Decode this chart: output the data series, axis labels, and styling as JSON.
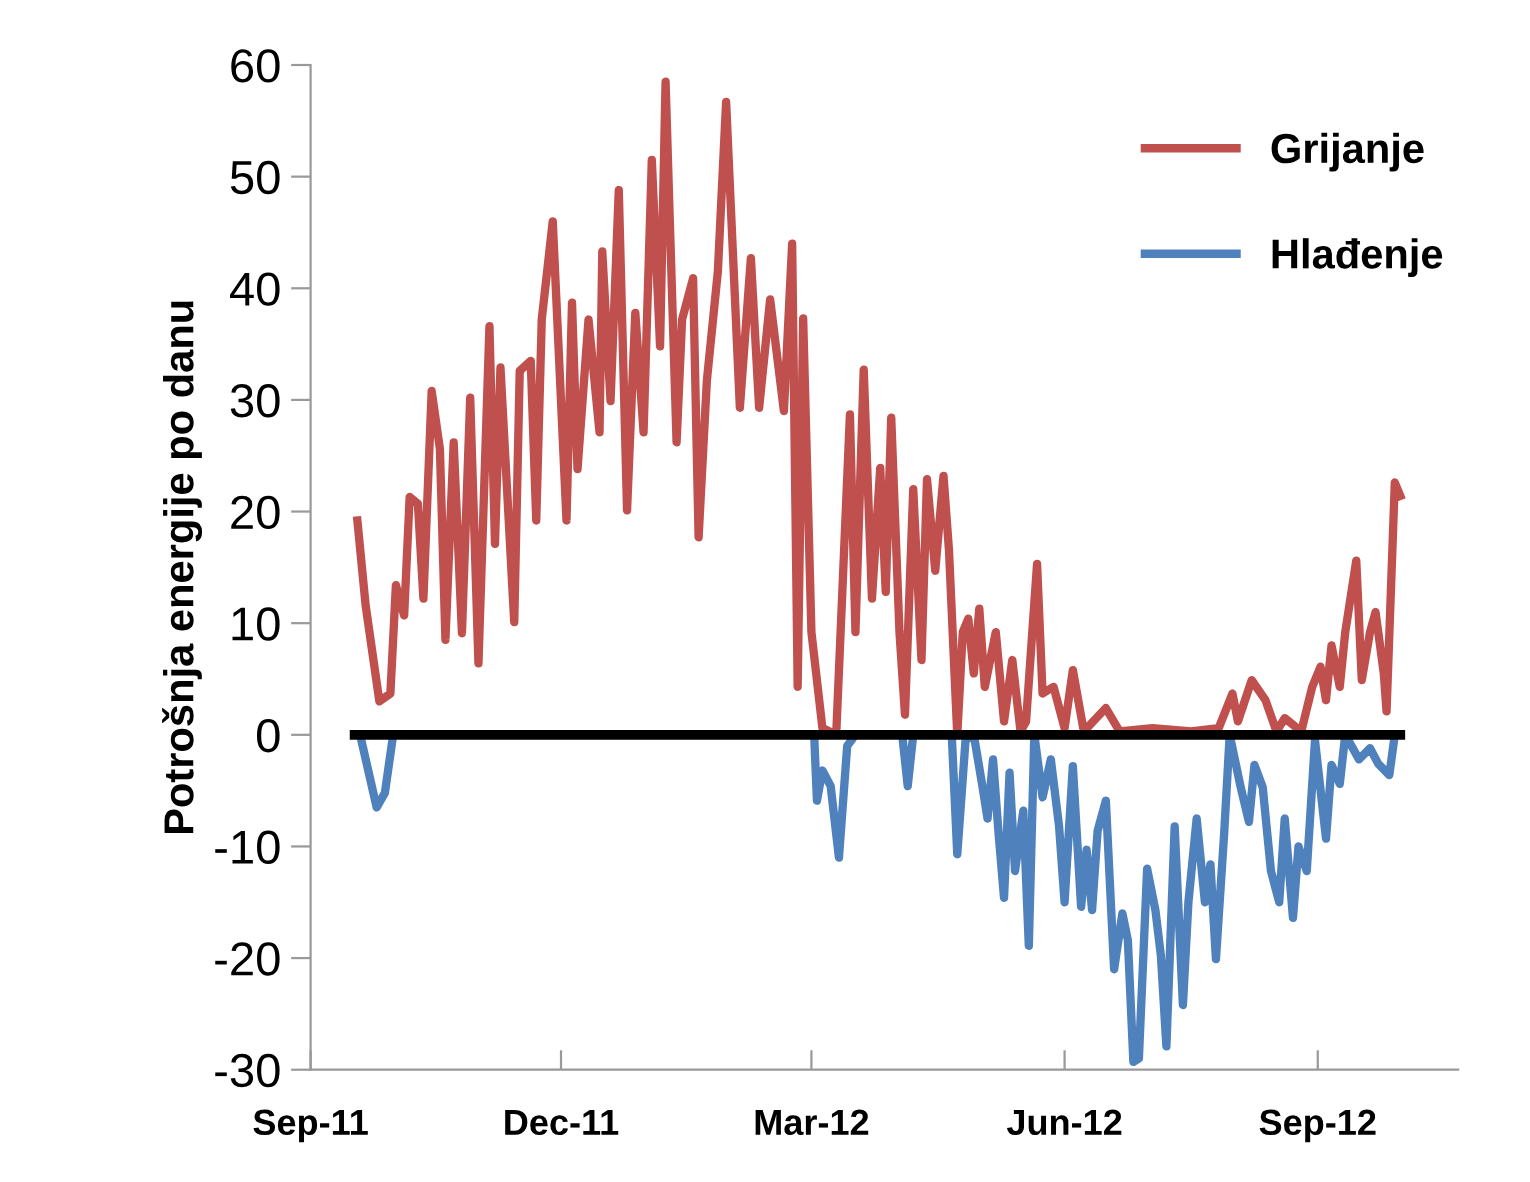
{
  "chart_data": {
    "type": "line",
    "ylabel": "Potrošnja energije po danu",
    "xlim": [
      "2011-09-01",
      "2012-10-22"
    ],
    "ylim": [
      -30,
      60
    ],
    "xticks": [
      {
        "value": "2011-09-01",
        "label": "Sep-11"
      },
      {
        "value": "2011-12-01",
        "label": "Dec-11"
      },
      {
        "value": "2012-03-01",
        "label": "Mar-12"
      },
      {
        "value": "2012-06-01",
        "label": "Jun-12"
      },
      {
        "value": "2012-09-01",
        "label": "Sep-12"
      }
    ],
    "yticks": [
      -30,
      -20,
      -10,
      0,
      10,
      20,
      30,
      40,
      50,
      60
    ],
    "grid": false,
    "legend": "top right",
    "marker": "none",
    "line_style": "solid",
    "series": [
      {
        "name": "Grijanje",
        "color": "#c0504d",
        "x": [
          "2011-09-18",
          "2011-09-21",
          "2011-09-26",
          "2011-09-30",
          "2011-10-02",
          "2011-10-05",
          "2011-10-07",
          "2011-10-10",
          "2011-10-12",
          "2011-10-15",
          "2011-10-18",
          "2011-10-20",
          "2011-10-23",
          "2011-10-26",
          "2011-10-29",
          "2011-11-01",
          "2011-11-05",
          "2011-11-07",
          "2011-11-09",
          "2011-11-14",
          "2011-11-16",
          "2011-11-20",
          "2011-11-22",
          "2011-11-24",
          "2011-11-28",
          "2011-12-03",
          "2011-12-05",
          "2011-12-07",
          "2011-12-11",
          "2011-12-15",
          "2011-12-16",
          "2011-12-19",
          "2011-12-22",
          "2011-12-25",
          "2011-12-28",
          "2011-12-31",
          "2012-01-03",
          "2012-01-06",
          "2012-01-08",
          "2012-01-12",
          "2012-01-14",
          "2012-01-18",
          "2012-01-20",
          "2012-01-23",
          "2012-01-27",
          "2012-01-30",
          "2012-02-04",
          "2012-02-08",
          "2012-02-11",
          "2012-02-15",
          "2012-02-20",
          "2012-02-23",
          "2012-02-25",
          "2012-02-27",
          "2012-03-01",
          "2012-03-05",
          "2012-03-10",
          "2012-03-15",
          "2012-03-17",
          "2012-03-20",
          "2012-03-23",
          "2012-03-26",
          "2012-03-28",
          "2012-03-30",
          "2012-04-02",
          "2012-04-04",
          "2012-04-07",
          "2012-04-10",
          "2012-04-12",
          "2012-04-15",
          "2012-04-18",
          "2012-04-20",
          "2012-04-23",
          "2012-04-25",
          "2012-04-27",
          "2012-04-29",
          "2012-05-01",
          "2012-05-03",
          "2012-05-07",
          "2012-05-10",
          "2012-05-13",
          "2012-05-16",
          "2012-05-18",
          "2012-05-22",
          "2012-05-24",
          "2012-05-28",
          "2012-06-01",
          "2012-06-04",
          "2012-06-08",
          "2012-06-16",
          "2012-06-21",
          "2012-07-03",
          "2012-07-17",
          "2012-07-27",
          "2012-08-01",
          "2012-08-03",
          "2012-08-08",
          "2012-08-13",
          "2012-08-17",
          "2012-08-20",
          "2012-08-26",
          "2012-08-30",
          "2012-09-02",
          "2012-09-04",
          "2012-09-06",
          "2012-09-09",
          "2012-09-11",
          "2012-09-15",
          "2012-09-17",
          "2012-09-20",
          "2012-09-22",
          "2012-09-25",
          "2012-09-26",
          "2012-09-29",
          "2012-10-01"
        ],
        "values": [
          19.2,
          11.6,
          3.0,
          3.7,
          13.4,
          10.7,
          21.3,
          20.7,
          12.2,
          30.8,
          25.6,
          8.5,
          26.2,
          9.1,
          30.2,
          6.4,
          36.6,
          17.1,
          32.9,
          10.1,
          32.6,
          33.5,
          19.2,
          37.2,
          46,
          19.2,
          38.7,
          23.8,
          37.2,
          27.1,
          43.3,
          29.9,
          48.8,
          20.1,
          37.8,
          27.1,
          51.5,
          34.8,
          58.5,
          26.2,
          37.2,
          40.9,
          17.7,
          31.7,
          41.5,
          56.7,
          29.3,
          42.7,
          29.3,
          39,
          29,
          44,
          4.3,
          37.3,
          9.2,
          0.6,
          0,
          28.7,
          9.2,
          32.7,
          12.2,
          23.9,
          12.8,
          28.4,
          9.2,
          1.8,
          22,
          6.7,
          22.9,
          14.7,
          23.2,
          16.5,
          0,
          9.2,
          10.4,
          5.5,
          11.3,
          4.3,
          9.2,
          1.2,
          6.7,
          0.3,
          1.2,
          15.3,
          3.7,
          4.3,
          0.6,
          5.8,
          0.3,
          2.4,
          0.3,
          0.6,
          0.3,
          0.6,
          3.7,
          1.2,
          4.9,
          3.1,
          0.3,
          1.5,
          0.3,
          4.3,
          6.1,
          3.1,
          8,
          4.3,
          9.2,
          15.6,
          4.9,
          9.2,
          11,
          5.5,
          2.1,
          22.6,
          21.4
        ]
      },
      {
        "name": "Hlađenje",
        "color": "#4f81bd",
        "x": [
          "2011-09-19",
          "2011-09-25",
          "2011-09-28",
          "2011-10-01",
          "2012-03-02",
          "2012-03-03",
          "2012-03-05",
          "2012-03-08",
          "2012-03-11",
          "2012-03-14",
          "2012-03-17",
          "2012-04-03",
          "2012-04-05",
          "2012-04-07",
          "2012-04-21",
          "2012-04-23",
          "2012-04-26",
          "2012-04-29",
          "2012-05-02",
          "2012-05-04",
          "2012-05-06",
          "2012-05-08",
          "2012-05-10",
          "2012-05-12",
          "2012-05-14",
          "2012-05-17",
          "2012-05-19",
          "2012-05-21",
          "2012-05-24",
          "2012-05-27",
          "2012-05-30",
          "2012-06-01",
          "2012-06-04",
          "2012-06-07",
          "2012-06-09",
          "2012-06-11",
          "2012-06-13",
          "2012-06-16",
          "2012-06-19",
          "2012-06-22",
          "2012-06-24",
          "2012-06-26",
          "2012-06-28",
          "2012-07-01",
          "2012-07-04",
          "2012-07-06",
          "2012-07-08",
          "2012-07-11",
          "2012-07-14",
          "2012-07-16",
          "2012-07-19",
          "2012-07-22",
          "2012-07-24",
          "2012-07-26",
          "2012-07-29",
          "2012-07-31",
          "2012-08-04",
          "2012-08-07",
          "2012-08-09",
          "2012-08-12",
          "2012-08-15",
          "2012-08-18",
          "2012-08-20",
          "2012-08-23",
          "2012-08-25",
          "2012-08-28",
          "2012-08-31",
          "2012-09-04",
          "2012-09-06",
          "2012-09-09",
          "2012-09-11",
          "2012-09-16",
          "2012-09-20",
          "2012-09-23",
          "2012-09-27",
          "2012-09-29"
        ],
        "values": [
          0,
          -6.5,
          -5.2,
          0,
          0,
          -5.9,
          -3.2,
          -4.6,
          -11,
          -1,
          0,
          0,
          -4.6,
          0,
          0,
          -10.7,
          -0.5,
          0,
          -4.4,
          -7.5,
          -2.2,
          -8.8,
          -14.6,
          -3.4,
          -12.2,
          -6.8,
          -18.9,
          0,
          -5.6,
          -2.2,
          -8.2,
          -15,
          -2.8,
          -15.4,
          -10.3,
          -15.7,
          -8.6,
          -5.9,
          -21,
          -16,
          -18.4,
          -29.3,
          -29,
          -12,
          -15.7,
          -19.8,
          -27.9,
          -8.2,
          -24.2,
          -15,
          -7.5,
          -15,
          -11.6,
          -20.1,
          -8.8,
          0,
          -4.7,
          -7.8,
          -2.7,
          -4.7,
          -12.2,
          -15,
          -7.5,
          -16.4,
          -10,
          -12.2,
          -0.5,
          -9.3,
          -2.7,
          -4.4,
          0,
          -2.2,
          -1.2,
          -2.6,
          -3.6,
          0
        ]
      },
      {
        "color": "#000000",
        "x": [
          "2011-09-17",
          "2012-10-01"
        ],
        "values": [
          0,
          0
        ]
      }
    ]
  }
}
